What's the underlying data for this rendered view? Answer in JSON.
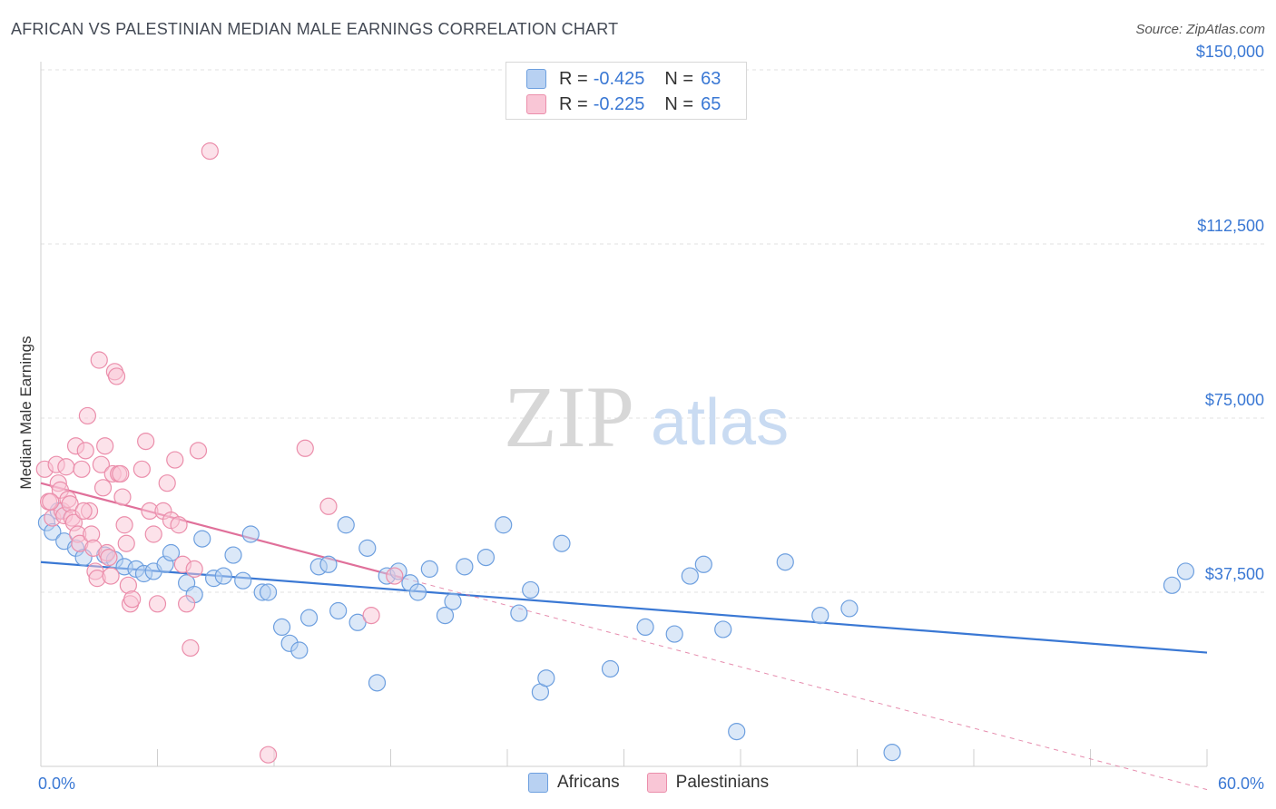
{
  "title": "AFRICAN VS PALESTINIAN MEDIAN MALE EARNINGS CORRELATION CHART",
  "source": "Source: ZipAtlas.com",
  "watermark": {
    "zip": "ZIP",
    "atlas": "atlas"
  },
  "legend": {
    "r_label": "R =",
    "n_label": "N =",
    "rows": [
      {
        "name": "Africans",
        "r": "-0.425",
        "n": "63",
        "fill": "#b8d1f2",
        "stroke": "#6d9fdf"
      },
      {
        "name": "Palestinians",
        "r": "-0.225",
        "n": "65",
        "fill": "#f9c6d6",
        "stroke": "#eb8eab"
      }
    ]
  },
  "chart_data": {
    "type": "scatter",
    "title": "AFRICAN VS PALESTINIAN MEDIAN MALE EARNINGS CORRELATION CHART",
    "xlabel": "",
    "ylabel": "Median Male Earnings",
    "xlim": [
      0,
      60
    ],
    "ylim": [
      0,
      155000
    ],
    "x_tick_labels": {
      "left": "0.0%",
      "right": "60.0%"
    },
    "y_ticks": [
      {
        "value": 37500,
        "label": "$37,500"
      },
      {
        "value": 75000,
        "label": "$75,000"
      },
      {
        "value": 112500,
        "label": "$112,500"
      },
      {
        "value": 150000,
        "label": "$150,000"
      }
    ],
    "series": [
      {
        "name": "Africans",
        "color": "#3a78d4",
        "fill": "#b8d1f2",
        "stroke": "#6d9fdf",
        "trend": {
          "x": [
            0,
            60
          ],
          "y": [
            44000,
            24500
          ],
          "dashed_extension": false
        },
        "points": [
          [
            0.3,
            52500
          ],
          [
            0.6,
            50500
          ],
          [
            1.2,
            48500
          ],
          [
            1.8,
            47000
          ],
          [
            2.2,
            45000
          ],
          [
            3.3,
            45500
          ],
          [
            3.8,
            44500
          ],
          [
            4.3,
            43000
          ],
          [
            4.9,
            42500
          ],
          [
            5.3,
            41500
          ],
          [
            5.8,
            42000
          ],
          [
            6.4,
            43500
          ],
          [
            6.7,
            46000
          ],
          [
            7.5,
            39500
          ],
          [
            7.9,
            37000
          ],
          [
            8.3,
            49000
          ],
          [
            8.9,
            40500
          ],
          [
            9.4,
            41000
          ],
          [
            9.9,
            45500
          ],
          [
            10.4,
            40000
          ],
          [
            10.8,
            50000
          ],
          [
            11.4,
            37500
          ],
          [
            11.7,
            37500
          ],
          [
            12.4,
            30000
          ],
          [
            12.8,
            26500
          ],
          [
            13.3,
            25000
          ],
          [
            13.8,
            32000
          ],
          [
            14.3,
            43000
          ],
          [
            14.8,
            43500
          ],
          [
            15.3,
            33500
          ],
          [
            15.7,
            52000
          ],
          [
            16.3,
            31000
          ],
          [
            16.8,
            47000
          ],
          [
            17.3,
            18000
          ],
          [
            17.8,
            41000
          ],
          [
            18.4,
            42000
          ],
          [
            19.0,
            39500
          ],
          [
            19.4,
            37500
          ],
          [
            20.0,
            42500
          ],
          [
            20.8,
            32500
          ],
          [
            21.2,
            35500
          ],
          [
            21.8,
            43000
          ],
          [
            22.9,
            45000
          ],
          [
            23.8,
            52000
          ],
          [
            24.6,
            33000
          ],
          [
            25.2,
            38000
          ],
          [
            25.7,
            16000
          ],
          [
            26.0,
            19000
          ],
          [
            26.8,
            48000
          ],
          [
            29.3,
            21000
          ],
          [
            31.1,
            30000
          ],
          [
            32.6,
            28500
          ],
          [
            33.4,
            41000
          ],
          [
            34.1,
            43500
          ],
          [
            35.1,
            29500
          ],
          [
            35.8,
            7500
          ],
          [
            38.3,
            44000
          ],
          [
            40.1,
            32500
          ],
          [
            41.6,
            34000
          ],
          [
            43.8,
            3000
          ],
          [
            58.2,
            39000
          ],
          [
            58.9,
            42000
          ],
          [
            0.9,
            55000
          ]
        ]
      },
      {
        "name": "Palestinians",
        "color": "#e0709a",
        "fill": "#f9c6d6",
        "stroke": "#eb8eab",
        "trend": {
          "x": [
            0,
            18.7
          ],
          "y": [
            61000,
            40500
          ],
          "dashed_to": [
            60,
            -5000
          ]
        },
        "points": [
          [
            0.2,
            64000
          ],
          [
            0.4,
            57000
          ],
          [
            0.6,
            53500
          ],
          [
            0.8,
            65000
          ],
          [
            0.9,
            61000
          ],
          [
            1.0,
            59500
          ],
          [
            1.1,
            55000
          ],
          [
            1.2,
            54000
          ],
          [
            1.3,
            64500
          ],
          [
            1.4,
            57500
          ],
          [
            1.5,
            56500
          ],
          [
            1.6,
            53500
          ],
          [
            1.7,
            52500
          ],
          [
            1.8,
            69000
          ],
          [
            1.9,
            50000
          ],
          [
            2.0,
            48000
          ],
          [
            2.1,
            64000
          ],
          [
            2.3,
            68000
          ],
          [
            2.4,
            75500
          ],
          [
            2.5,
            55000
          ],
          [
            2.6,
            50000
          ],
          [
            2.7,
            47000
          ],
          [
            2.8,
            42000
          ],
          [
            2.9,
            40500
          ],
          [
            3.0,
            87500
          ],
          [
            3.1,
            65000
          ],
          [
            3.2,
            60000
          ],
          [
            3.3,
            69000
          ],
          [
            3.4,
            46000
          ],
          [
            3.5,
            45000
          ],
          [
            3.6,
            41000
          ],
          [
            3.7,
            63000
          ],
          [
            3.8,
            85000
          ],
          [
            3.9,
            84000
          ],
          [
            4.0,
            63000
          ],
          [
            4.1,
            63000
          ],
          [
            4.2,
            58000
          ],
          [
            4.3,
            52000
          ],
          [
            4.4,
            48000
          ],
          [
            4.5,
            39000
          ],
          [
            4.6,
            35000
          ],
          [
            4.7,
            36000
          ],
          [
            5.2,
            64000
          ],
          [
            5.4,
            70000
          ],
          [
            5.6,
            55000
          ],
          [
            5.8,
            50000
          ],
          [
            6.0,
            35000
          ],
          [
            6.3,
            55000
          ],
          [
            6.5,
            61000
          ],
          [
            6.7,
            53000
          ],
          [
            6.9,
            66000
          ],
          [
            7.1,
            52000
          ],
          [
            7.3,
            43500
          ],
          [
            7.5,
            35000
          ],
          [
            7.7,
            25500
          ],
          [
            7.9,
            42500
          ],
          [
            8.1,
            68000
          ],
          [
            8.7,
            132500
          ],
          [
            11.7,
            2500
          ],
          [
            13.6,
            68500
          ],
          [
            14.8,
            56000
          ],
          [
            17.0,
            32500
          ],
          [
            18.2,
            41000
          ],
          [
            0.5,
            57000
          ],
          [
            2.2,
            55000
          ]
        ]
      }
    ]
  }
}
